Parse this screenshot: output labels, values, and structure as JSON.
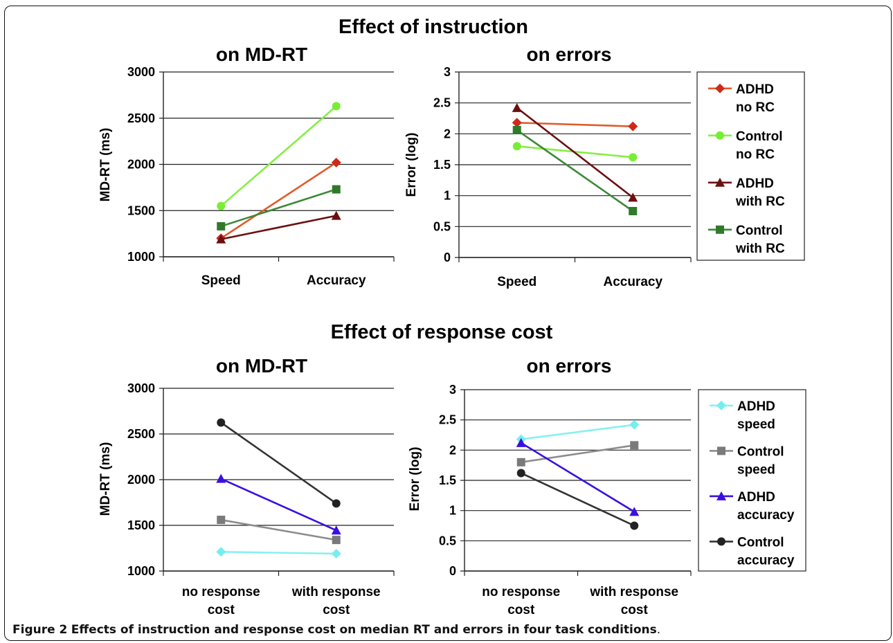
{
  "sections": [
    {
      "title": "Effect of instruction"
    },
    {
      "title": "Effect of response cost"
    }
  ],
  "caption": {
    "label": "Figure 2",
    "text": "Effects of instruction and response cost on median RT and errors in four task conditions",
    "suffix": "."
  },
  "chart_data": [
    {
      "type": "line",
      "title": "on MD-RT",
      "ylabel": "MD-RT (ms)",
      "xlabel": "",
      "categories": [
        "Speed",
        "Accuracy"
      ],
      "ylim": [
        1000,
        3000
      ],
      "yticks": [
        "1000",
        "1500",
        "2000",
        "2500",
        "3000"
      ],
      "grid": true,
      "series": [
        {
          "name": "ADHD no RC",
          "values": [
            1200,
            2020
          ],
          "color": "#e05a28",
          "marker": "diamond",
          "markerColor": "#cc2a1a"
        },
        {
          "name": "Control no RC",
          "values": [
            1550,
            2630
          ],
          "color": "#88ee44",
          "marker": "circle",
          "markerColor": "#77ee33"
        },
        {
          "name": "ADHD with RC",
          "values": [
            1190,
            1445
          ],
          "color": "#6b1010",
          "marker": "triangle",
          "markerColor": "#6b1010"
        },
        {
          "name": "Control with RC",
          "values": [
            1330,
            1730
          ],
          "color": "#3a8a36",
          "marker": "square",
          "markerColor": "#2f7a2a"
        }
      ]
    },
    {
      "type": "line",
      "title": "on errors",
      "ylabel": "Error (log)",
      "xlabel": "",
      "categories": [
        "Speed",
        "Accuracy"
      ],
      "ylim": [
        0,
        3
      ],
      "yticks": [
        "0",
        "0.5",
        "1",
        "1.5",
        "2",
        "2.5",
        "3"
      ],
      "grid": true,
      "legend": "right",
      "series": [
        {
          "name": "ADHD no RC",
          "label_lines": [
            "ADHD",
            "no RC"
          ],
          "values": [
            2.18,
            2.12
          ],
          "color": "#e05a28",
          "marker": "diamond",
          "markerColor": "#cc2a1a"
        },
        {
          "name": "Control no RC",
          "label_lines": [
            "Control",
            "no RC"
          ],
          "values": [
            1.8,
            1.62
          ],
          "color": "#88ee44",
          "marker": "circle",
          "markerColor": "#77ee33"
        },
        {
          "name": "ADHD with RC",
          "label_lines": [
            "ADHD",
            "with RC"
          ],
          "values": [
            2.42,
            0.97
          ],
          "color": "#6b1010",
          "marker": "triangle",
          "markerColor": "#6b1010"
        },
        {
          "name": "Control with RC",
          "label_lines": [
            "Control",
            "with RC"
          ],
          "values": [
            2.06,
            0.75
          ],
          "color": "#3a8a36",
          "marker": "square",
          "markerColor": "#2f7a2a"
        }
      ]
    },
    {
      "type": "line",
      "title": "on MD-RT",
      "ylabel": "MD-RT (ms)",
      "xlabel": "",
      "categories": [
        "no response cost",
        "with response cost"
      ],
      "category_lines": [
        [
          "no response",
          "cost"
        ],
        [
          "with response",
          "cost"
        ]
      ],
      "ylim": [
        1000,
        3000
      ],
      "yticks": [
        "1000",
        "1500",
        "2000",
        "2500",
        "3000"
      ],
      "grid": true,
      "series": [
        {
          "name": "ADHD speed",
          "values": [
            1210,
            1190
          ],
          "color": "#88f0f0",
          "marker": "diamond",
          "markerColor": "#77eeee"
        },
        {
          "name": "Control speed",
          "values": [
            1560,
            1340
          ],
          "color": "#8c8c8c",
          "marker": "square",
          "markerColor": "#7a7a7a"
        },
        {
          "name": "ADHD accuracy",
          "values": [
            2010,
            1445
          ],
          "color": "#3a10e0",
          "marker": "triangle",
          "markerColor": "#3a10e0"
        },
        {
          "name": "Control accuracy",
          "values": [
            2625,
            1740
          ],
          "color": "#333333",
          "marker": "circle",
          "markerColor": "#222222"
        }
      ]
    },
    {
      "type": "line",
      "title": "on errors",
      "ylabel": "Error (log)",
      "xlabel": "",
      "categories": [
        "no response cost",
        "with response cost"
      ],
      "category_lines": [
        [
          "no response",
          "cost"
        ],
        [
          "with response",
          "cost"
        ]
      ],
      "ylim": [
        0,
        3
      ],
      "yticks": [
        "0",
        "0.5",
        "1",
        "1.5",
        "2",
        "2.5",
        "3"
      ],
      "grid": true,
      "legend": "right",
      "series": [
        {
          "name": "ADHD speed",
          "label_lines": [
            "ADHD",
            "speed"
          ],
          "values": [
            2.18,
            2.42
          ],
          "color": "#88f0f0",
          "marker": "diamond",
          "markerColor": "#77eeee"
        },
        {
          "name": "Control speed",
          "label_lines": [
            "Control",
            "speed"
          ],
          "values": [
            1.8,
            2.08
          ],
          "color": "#8c8c8c",
          "marker": "square",
          "markerColor": "#7a7a7a"
        },
        {
          "name": "ADHD accuracy",
          "label_lines": [
            "ADHD",
            "accuracy"
          ],
          "values": [
            2.12,
            0.98
          ],
          "color": "#3a10e0",
          "marker": "triangle",
          "markerColor": "#3a10e0"
        },
        {
          "name": "Control accuracy",
          "label_lines": [
            "Control",
            "accuracy"
          ],
          "values": [
            1.62,
            0.75
          ],
          "color": "#333333",
          "marker": "circle",
          "markerColor": "#222222"
        }
      ]
    }
  ]
}
